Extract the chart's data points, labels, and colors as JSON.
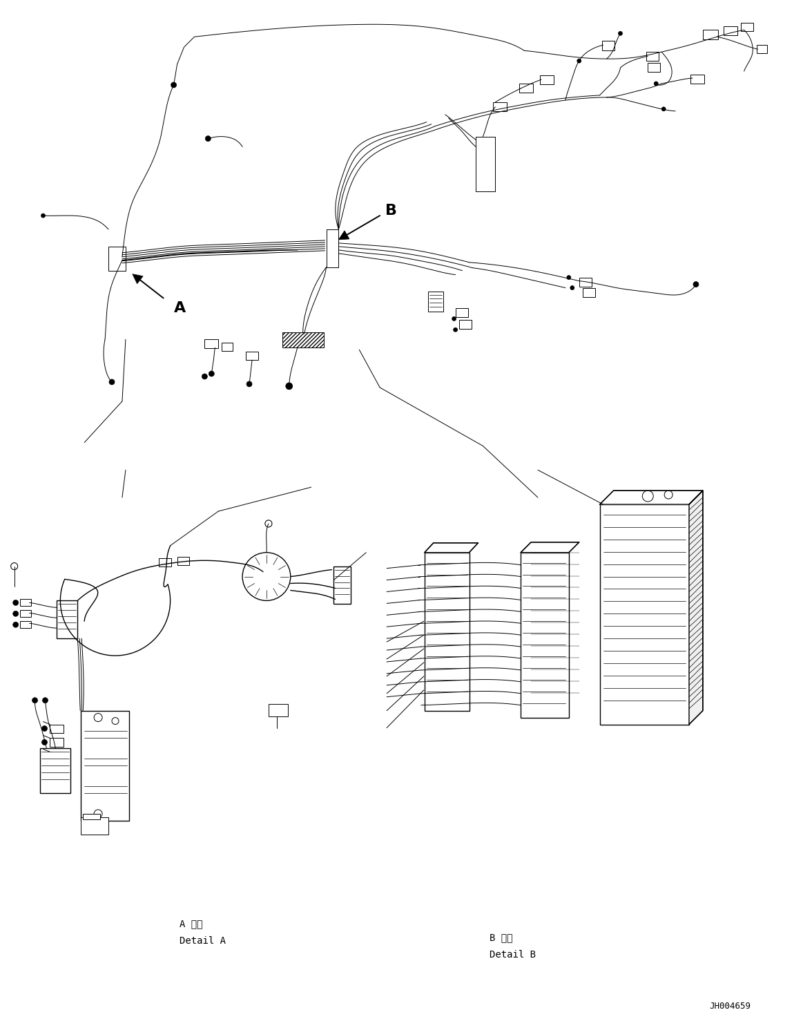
{
  "background_color": "#ffffff",
  "line_color": "#000000",
  "fig_width": 11.63,
  "fig_height": 14.88,
  "dpi": 100,
  "part_number": "JH004659",
  "label_A": "A",
  "label_B": "B",
  "detail_A_jp": "A 詳細",
  "detail_A_en": "Detail A",
  "detail_B_jp": "B 詳細",
  "detail_B_en": "Detail B",
  "font_size_label": 16,
  "font_size_detail": 10,
  "font_size_partno": 9,
  "lw_thin": 0.7,
  "lw_med": 1.0,
  "lw_thick": 1.4
}
